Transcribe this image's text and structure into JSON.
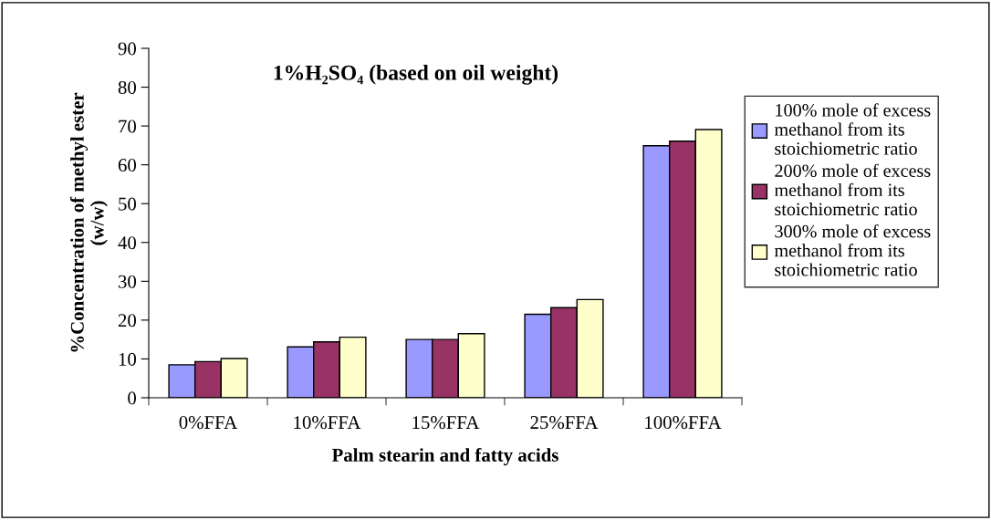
{
  "chart_data": {
    "type": "bar",
    "title": "1%H₂SO₄ (based on oil weight)",
    "xlabel": "Palm stearin and fatty acids",
    "ylabel": "%Concentration of methyl ester\n(w/w)",
    "categories": [
      "0%FFA",
      "10%FFA",
      "15%FFA",
      "25%FFA",
      "100%FFA"
    ],
    "series": [
      {
        "name": "100% mole of excess methanol from its stoichiometric ratio",
        "color": "#9999ff",
        "values": [
          8.5,
          13.1,
          15.0,
          21.5,
          64.9
        ]
      },
      {
        "name": "200% mole of excess methanol from its stoichiometric ratio",
        "color": "#993366",
        "values": [
          9.3,
          14.4,
          15.0,
          23.2,
          66.1
        ]
      },
      {
        "name": "300% mole of excess methanol from its stoichiometric ratio",
        "color": "#ffffcc",
        "values": [
          10.1,
          15.6,
          16.5,
          25.3,
          69.1
        ]
      }
    ],
    "ylim": [
      0,
      90
    ],
    "yticks": [
      0,
      10,
      20,
      30,
      40,
      50,
      60,
      70,
      80,
      90
    ],
    "grid": false,
    "legend": "right"
  }
}
